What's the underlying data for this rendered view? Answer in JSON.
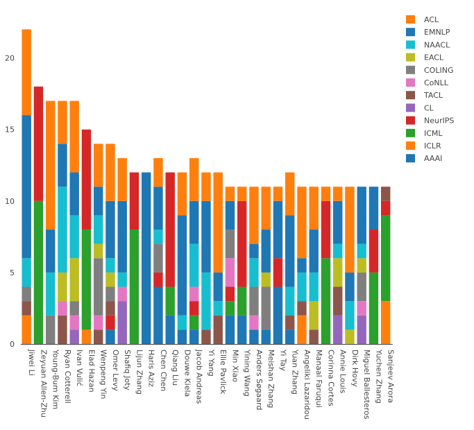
{
  "chart_data": {
    "type": "bar",
    "stacked": true,
    "ylim": [
      0,
      22.6
    ],
    "yticks": [
      0,
      5,
      10,
      15,
      20
    ],
    "grid": false,
    "legend_position": "top-right",
    "categories": [
      "Jiwei Li",
      "Zeyuan Allen-Zhu",
      "Young-Bum Kim",
      "Ryan Cotterell",
      "Ivan Vulić",
      "Elad Hazan",
      "Wenpeng Yin",
      "Omer Levy",
      "Shafiq Joty",
      "Lijun Zhang",
      "Haris Aziz",
      "Chen Chen",
      "Qiang Liu",
      "Douwe Kiela",
      "Jacob Andreas",
      "Yi Yang",
      "Ellie Pavlick",
      "Min Xiao",
      "Yining Wang",
      "Anders Søgaard",
      "Meishan Zhang",
      "Yi Tay",
      "Yuan Zhang",
      "Angeliki Lazaridou",
      "Manaal Faruqui",
      "Corinna Cortes",
      "Annie Louis",
      "Dirk Hovy",
      "Miguel Ballesteros",
      "Yuchen Zhang",
      "Sanjeev Arora"
    ],
    "series": [
      {
        "name": "AAAI",
        "color": "#1f77b4",
        "values": [
          0,
          0,
          0,
          0,
          0,
          0,
          0,
          1,
          0,
          0,
          12,
          4,
          2,
          1,
          1,
          0,
          0,
          2,
          2,
          1,
          1,
          4,
          1,
          0,
          0,
          0,
          0,
          0,
          0,
          0,
          0
        ]
      },
      {
        "name": "ICLR",
        "color": "#ff7f0e",
        "values": [
          2,
          0,
          0,
          0,
          0,
          1,
          0,
          0,
          0,
          0,
          0,
          0,
          0,
          0,
          0,
          0,
          0,
          0,
          0,
          0,
          0,
          0,
          0,
          2,
          0,
          0,
          0,
          0,
          0,
          0,
          3
        ]
      },
      {
        "name": "ICML",
        "color": "#2ca02c",
        "values": [
          0,
          10,
          0,
          0,
          0,
          7,
          0,
          0,
          0,
          8,
          0,
          0,
          2,
          0,
          1,
          0,
          0,
          1,
          2,
          0,
          0,
          0,
          0,
          0,
          0,
          6,
          0,
          0,
          0,
          5,
          6
        ]
      },
      {
        "name": "NeurIPS",
        "color": "#d62728",
        "values": [
          0,
          8,
          0,
          0,
          0,
          7,
          0,
          1,
          0,
          4,
          0,
          1,
          8,
          0,
          1,
          0,
          0,
          1,
          6,
          0,
          0,
          2,
          0,
          0,
          0,
          4,
          0,
          0,
          0,
          3,
          1
        ]
      },
      {
        "name": "CL",
        "color": "#9467bd",
        "values": [
          0,
          0,
          0,
          0,
          1,
          0,
          0,
          0,
          3,
          0,
          0,
          0,
          0,
          0,
          0,
          0,
          0,
          0,
          0,
          0,
          0,
          0,
          0,
          0,
          0,
          0,
          2,
          0,
          2,
          0,
          0
        ]
      },
      {
        "name": "TACL",
        "color": "#8c564b",
        "values": [
          1,
          0,
          0,
          2,
          0,
          0,
          1,
          1,
          0,
          0,
          0,
          0,
          0,
          0,
          0,
          1,
          2,
          0,
          0,
          0,
          0,
          0,
          1,
          1,
          1,
          0,
          2,
          0,
          0,
          0,
          1
        ]
      },
      {
        "name": "CoNLL",
        "color": "#e377c2",
        "values": [
          0,
          0,
          0,
          1,
          1,
          0,
          1,
          0,
          1,
          0,
          0,
          0,
          0,
          0,
          1,
          0,
          0,
          2,
          0,
          1,
          0,
          0,
          0,
          0,
          0,
          0,
          0,
          0,
          1,
          0,
          0
        ]
      },
      {
        "name": "COLING",
        "color": "#7f7f7f",
        "values": [
          1,
          0,
          2,
          0,
          1,
          0,
          4,
          1,
          0,
          0,
          0,
          2,
          0,
          0,
          0,
          0,
          0,
          2,
          0,
          2,
          3,
          0,
          0,
          0,
          0,
          0,
          0,
          0,
          2,
          0,
          0
        ]
      },
      {
        "name": "EACL",
        "color": "#bcbd22",
        "values": [
          0,
          0,
          0,
          2,
          3,
          0,
          1,
          1,
          0,
          0,
          0,
          0,
          0,
          0,
          0,
          0,
          0,
          0,
          0,
          0,
          1,
          0,
          0,
          0,
          2,
          0,
          2,
          1,
          1,
          0,
          0
        ]
      },
      {
        "name": "NAACL",
        "color": "#17becf",
        "values": [
          2,
          0,
          3,
          6,
          3,
          0,
          2,
          1,
          1,
          0,
          0,
          1,
          0,
          1,
          3,
          4,
          1,
          0,
          0,
          2,
          0,
          0,
          2,
          2,
          2,
          0,
          1,
          2,
          1,
          0,
          0
        ]
      },
      {
        "name": "EMNLP",
        "color": "#1f77b4",
        "values": [
          10,
          0,
          3,
          3,
          3,
          0,
          2,
          4,
          5,
          0,
          0,
          3,
          0,
          7,
          3,
          5,
          2,
          2,
          0,
          1,
          3,
          4,
          5,
          1,
          3,
          0,
          3,
          2,
          4,
          3,
          0
        ]
      },
      {
        "name": "ACL",
        "color": "#ff7f0e",
        "values": [
          6,
          0,
          9,
          3,
          5,
          0,
          3,
          4,
          3,
          0,
          0,
          2,
          0,
          3,
          3,
          2,
          7,
          1,
          1,
          4,
          3,
          1,
          3,
          5,
          3,
          1,
          1,
          6,
          0,
          0,
          0
        ]
      }
    ]
  }
}
